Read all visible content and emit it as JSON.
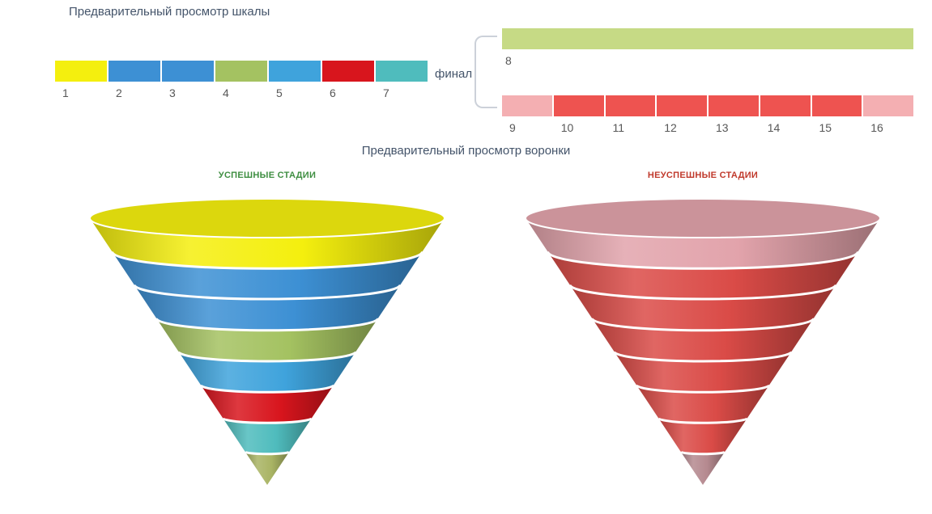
{
  "scale_preview": {
    "title": "Предварительный просмотр шкалы",
    "final_label": "финал",
    "success_stages": [
      {
        "label": "1",
        "color": "#f4ef0e"
      },
      {
        "label": "2",
        "color": "#3d90d4"
      },
      {
        "label": "3",
        "color": "#3d90d4"
      },
      {
        "label": "4",
        "color": "#a4c261"
      },
      {
        "label": "5",
        "color": "#3fa3dc"
      },
      {
        "label": "6",
        "color": "#d8151d"
      },
      {
        "label": "7",
        "color": "#4fbcbd"
      }
    ],
    "final_stage": {
      "label": "8",
      "color": "#c6da85"
    },
    "fail_stages": [
      {
        "label": "9",
        "color": "#f4afb2"
      },
      {
        "label": "10",
        "color": "#ee5350"
      },
      {
        "label": "11",
        "color": "#ee5350"
      },
      {
        "label": "12",
        "color": "#ee5350"
      },
      {
        "label": "13",
        "color": "#ee5350"
      },
      {
        "label": "14",
        "color": "#ee5350"
      },
      {
        "label": "15",
        "color": "#ee5350"
      },
      {
        "label": "16",
        "color": "#f4afb2"
      }
    ]
  },
  "funnel_preview": {
    "title": "Предварительный просмотр воронки",
    "success_funnel": {
      "label": "УСПЕШНЫЕ СТАДИИ",
      "label_color": "#3e8e41",
      "layers": [
        "#f4ef0e",
        "#3d90d4",
        "#3d90d4",
        "#a4c261",
        "#3fa3dc",
        "#d8151d",
        "#4fbcbd",
        "#a9b464"
      ]
    },
    "fail_funnel": {
      "label": "НЕУСПЕШНЫЕ СТАДИИ",
      "label_color": "#c0392b",
      "layers": [
        "#e2a3ab",
        "#da4b47",
        "#da4b47",
        "#da4b47",
        "#da4b47",
        "#da4b47",
        "#da4b47",
        "#b5898f"
      ]
    }
  }
}
